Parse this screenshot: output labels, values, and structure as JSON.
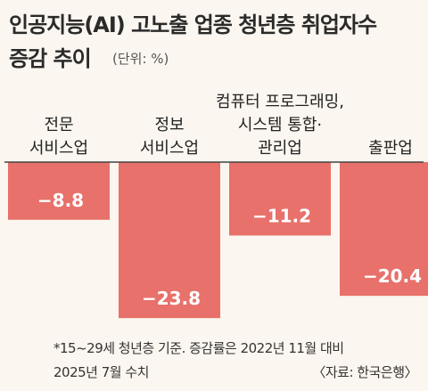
{
  "title_line1": "인공지능(AI) 고노출 업종 청년층 취업자수",
  "title_line2": "증감 추이",
  "unit": "(단위: %)",
  "footnote_line1": "*15~29세 청년층 기준. 증감률은 2022년 11월 대비",
  "footnote_line2": "2025년 7월 수치",
  "source": "〈자료: 한국은행〉",
  "colors": {
    "bar": "#e8716b",
    "background": "#fbf6ef",
    "axis": "#444444",
    "value_text": "#ffffff"
  },
  "chart_data": {
    "type": "bar",
    "title": "인공지능(AI) 고노출 업종 청년층 취업자수 증감 추이",
    "unit": "%",
    "categories": [
      [
        "전문",
        "서비스업"
      ],
      [
        "정보",
        "서비스업"
      ],
      [
        "컴퓨터 프로그래밍,",
        "시스템 통합·",
        "관리업"
      ],
      [
        "출판업"
      ]
    ],
    "values": [
      -8.8,
      -23.8,
      -11.2,
      -20.4
    ],
    "value_labels": [
      "−8.8",
      "−23.8",
      "−11.2",
      "−20.4"
    ],
    "ylim": [
      -25,
      0
    ]
  }
}
